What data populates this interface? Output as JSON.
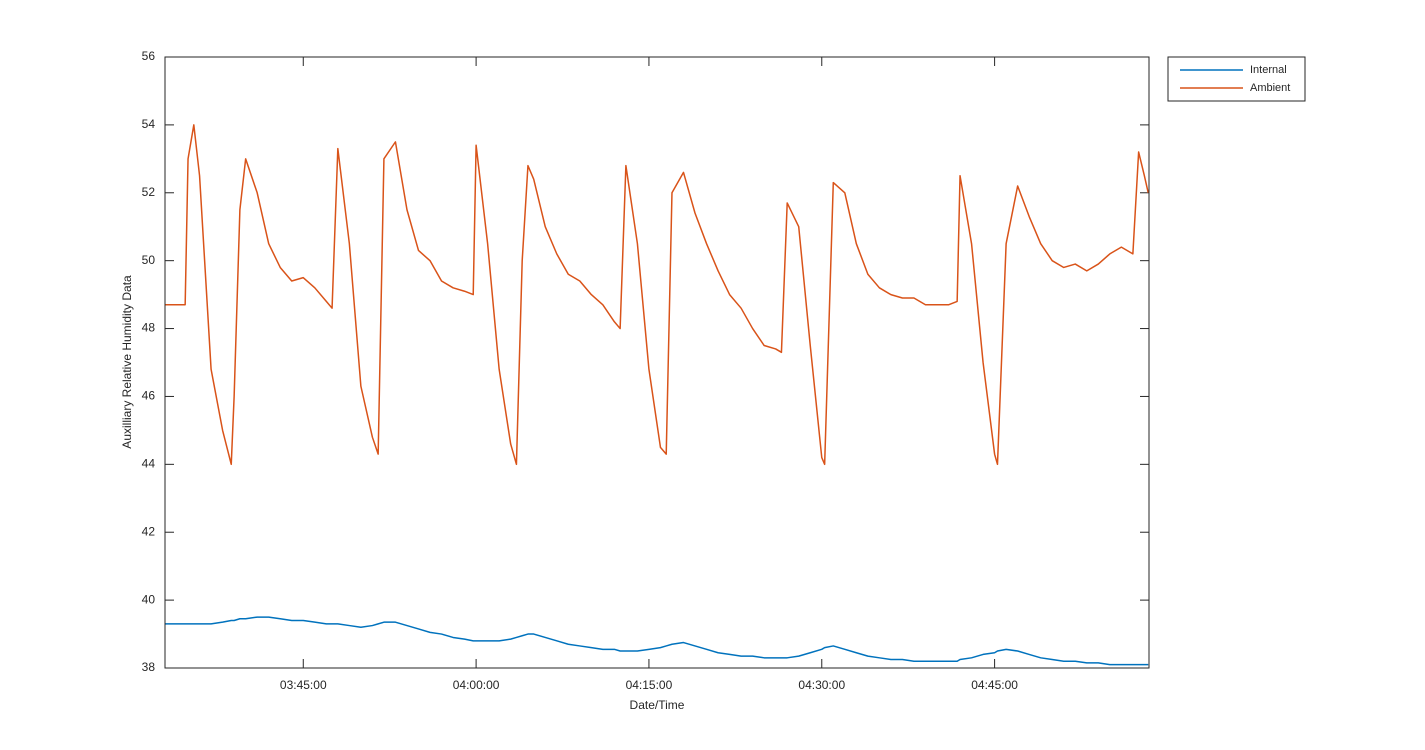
{
  "chart_data": {
    "type": "line",
    "xlabel": "Date/Time",
    "ylabel": "Auxilliary Relative Humidity Data",
    "x": [
      "03:33:00",
      "03:34:00",
      "03:34:45",
      "03:35:00",
      "03:35:30",
      "03:36:00",
      "03:37:00",
      "03:38:00",
      "03:38:45",
      "03:39:00",
      "03:39:30",
      "03:40:00",
      "03:41:00",
      "03:42:00",
      "03:43:00",
      "03:44:00",
      "03:45:00",
      "03:46:00",
      "03:47:00",
      "03:47:30",
      "03:48:00",
      "03:49:00",
      "03:50:00",
      "03:51:00",
      "03:51:30",
      "03:52:00",
      "03:53:00",
      "03:54:00",
      "03:55:00",
      "03:56:00",
      "03:57:00",
      "03:58:00",
      "03:59:00",
      "03:59:45",
      "04:00:00",
      "04:01:00",
      "04:02:00",
      "04:03:00",
      "04:03:30",
      "04:04:00",
      "04:04:30",
      "04:05:00",
      "04:06:00",
      "04:07:00",
      "04:08:00",
      "04:09:00",
      "04:10:00",
      "04:11:00",
      "04:12:00",
      "04:12:30",
      "04:13:00",
      "04:14:00",
      "04:15:00",
      "04:16:00",
      "04:16:30",
      "04:17:00",
      "04:18:00",
      "04:19:00",
      "04:20:00",
      "04:21:00",
      "04:22:00",
      "04:23:00",
      "04:24:00",
      "04:25:00",
      "04:26:00",
      "04:26:30",
      "04:27:00",
      "04:28:00",
      "04:29:00",
      "04:30:00",
      "04:30:15",
      "04:31:00",
      "04:32:00",
      "04:33:00",
      "04:34:00",
      "04:35:00",
      "04:36:00",
      "04:37:00",
      "04:38:00",
      "04:39:00",
      "04:40:00",
      "04:41:00",
      "04:41:45",
      "04:42:00",
      "04:43:00",
      "04:44:00",
      "04:45:00",
      "04:45:15",
      "04:46:00",
      "04:47:00",
      "04:48:00",
      "04:49:00",
      "04:50:00",
      "04:51:00",
      "04:52:00",
      "04:53:00",
      "04:54:00",
      "04:55:00",
      "04:56:00",
      "04:57:00",
      "04:57:30",
      "04:58:00",
      "04:58:20"
    ],
    "series": [
      {
        "name": "Internal",
        "color": "#0072bd",
        "values": [
          39.3,
          39.3,
          39.3,
          39.3,
          39.3,
          39.3,
          39.3,
          39.35,
          39.4,
          39.4,
          39.45,
          39.45,
          39.5,
          39.5,
          39.45,
          39.4,
          39.4,
          39.35,
          39.3,
          39.3,
          39.3,
          39.25,
          39.2,
          39.25,
          39.3,
          39.35,
          39.35,
          39.25,
          39.15,
          39.05,
          39.0,
          38.9,
          38.85,
          38.8,
          38.8,
          38.8,
          38.8,
          38.85,
          38.9,
          38.95,
          39.0,
          39.0,
          38.9,
          38.8,
          38.7,
          38.65,
          38.6,
          38.55,
          38.55,
          38.5,
          38.5,
          38.5,
          38.55,
          38.6,
          38.65,
          38.7,
          38.75,
          38.65,
          38.55,
          38.45,
          38.4,
          38.35,
          38.35,
          38.3,
          38.3,
          38.3,
          38.3,
          38.35,
          38.45,
          38.55,
          38.6,
          38.65,
          38.55,
          38.45,
          38.35,
          38.3,
          38.25,
          38.25,
          38.2,
          38.2,
          38.2,
          38.2,
          38.2,
          38.25,
          38.3,
          38.4,
          38.45,
          38.5,
          38.55,
          38.5,
          38.4,
          38.3,
          38.25,
          38.2,
          38.2,
          38.15,
          38.15,
          38.1,
          38.1,
          38.1,
          38.1,
          38.1,
          38.1
        ]
      },
      {
        "name": "Ambient",
        "color": "#d95319",
        "values": [
          48.7,
          48.7,
          48.7,
          53.0,
          54.0,
          52.5,
          46.8,
          45.0,
          44.0,
          46.0,
          51.5,
          53.0,
          52.0,
          50.5,
          49.8,
          49.4,
          49.5,
          49.2,
          48.8,
          48.6,
          53.3,
          50.5,
          46.3,
          44.8,
          44.3,
          53.0,
          53.5,
          51.5,
          50.3,
          50.0,
          49.4,
          49.2,
          49.1,
          49.0,
          53.4,
          50.5,
          46.8,
          44.6,
          44.0,
          50.0,
          52.8,
          52.4,
          51.0,
          50.2,
          49.6,
          49.4,
          49.0,
          48.7,
          48.2,
          48.0,
          52.8,
          50.5,
          46.8,
          44.5,
          44.3,
          52.0,
          52.6,
          51.4,
          50.5,
          49.7,
          49.0,
          48.6,
          48.0,
          47.5,
          47.4,
          47.3,
          51.7,
          51.0,
          47.5,
          44.2,
          44.0,
          52.3,
          52.0,
          50.5,
          49.6,
          49.2,
          49.0,
          48.9,
          48.9,
          48.7,
          48.7,
          48.7,
          48.8,
          52.5,
          50.5,
          47.0,
          44.3,
          44.0,
          50.5,
          52.2,
          51.3,
          50.5,
          50.0,
          49.8,
          49.9,
          49.7,
          49.9,
          50.2,
          50.4,
          50.2,
          53.2,
          52.5,
          52.0
        ]
      }
    ],
    "xlim": [
      "03:33:00",
      "04:58:24"
    ],
    "xticks": [
      "03:45:00",
      "04:00:00",
      "04:15:00",
      "04:30:00",
      "04:45:00"
    ],
    "ylim": [
      38,
      56
    ],
    "yticks": [
      38,
      40,
      42,
      44,
      46,
      48,
      50,
      52,
      54,
      56
    ],
    "grid": false,
    "legend": "outside-top-right"
  }
}
